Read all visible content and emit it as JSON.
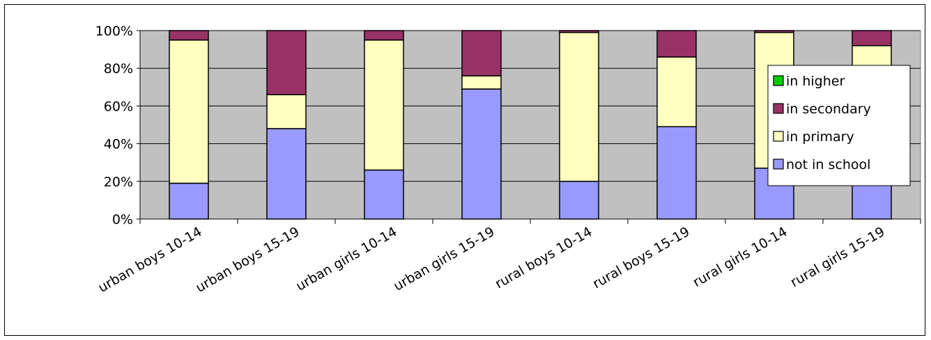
{
  "chart_data": {
    "type": "bar",
    "stacked": true,
    "percent": true,
    "categories": [
      "urban boys 10-14",
      "urban boys 15-19",
      "urban girls 10-14",
      "urban girls 15-19",
      "rural boys 10-14",
      "rural boys 15-19",
      "rural girls 10-14",
      "rural girls 15-19"
    ],
    "series": [
      {
        "name": "not in school",
        "color": "#9999ff",
        "values": [
          19,
          48,
          26,
          69,
          20,
          49,
          27,
          79
        ]
      },
      {
        "name": "in primary",
        "color": "#ffffc0",
        "values": [
          76,
          18,
          69,
          7,
          79,
          37,
          72,
          13
        ]
      },
      {
        "name": "in secondary",
        "color": "#993366",
        "values": [
          5,
          34,
          5,
          24,
          1,
          14,
          1,
          8
        ]
      },
      {
        "name": "in higher",
        "color": "#00cc00",
        "values": [
          0,
          0,
          0,
          0,
          0,
          0,
          0,
          0
        ]
      }
    ],
    "ylim": [
      0,
      100
    ],
    "yticks": [
      "0%",
      "20%",
      "40%",
      "60%",
      "80%",
      "100%"
    ],
    "plot_background": "#c0c0c0",
    "grid": true,
    "legend_position": "right",
    "legend_order": [
      "in higher",
      "in secondary",
      "in primary",
      "not in school"
    ]
  }
}
